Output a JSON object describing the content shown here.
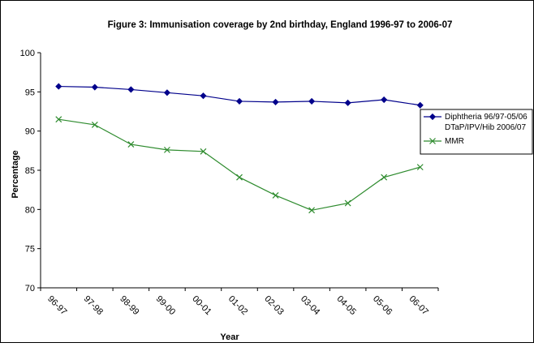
{
  "chart_data": {
    "type": "line",
    "title": "Figure 3: Immunisation coverage by 2nd birthday, England 1996-97 to 2006-07",
    "xlabel": "Year",
    "ylabel": "Percentage",
    "ylim": [
      70,
      100
    ],
    "yticks": [
      70,
      75,
      80,
      85,
      90,
      95,
      100
    ],
    "categories": [
      "96-97",
      "97-98",
      "98-99",
      "99-00",
      "00-01",
      "01-02",
      "02-03",
      "03-04",
      "04-05",
      "05-06",
      "06-07"
    ],
    "grid": false,
    "legend_position": "right",
    "series": [
      {
        "name": "Diphtheria 96/97-05/06 DTaP/IPV/Hib 2006/07",
        "legend_lines": [
          "Diphtheria 96/97-05/06",
          "DTaP/IPV/Hib 2006/07"
        ],
        "color": "#00008b",
        "marker": "diamond",
        "values": [
          95.7,
          95.6,
          95.3,
          94.9,
          94.5,
          93.8,
          93.7,
          93.8,
          93.6,
          94.0,
          93.3
        ]
      },
      {
        "name": "MMR",
        "legend_lines": [
          "MMR"
        ],
        "color": "#2e8b2e",
        "marker": "x",
        "values": [
          91.5,
          90.8,
          88.3,
          87.6,
          87.4,
          84.1,
          81.8,
          79.9,
          80.8,
          84.1,
          85.4
        ]
      }
    ]
  }
}
